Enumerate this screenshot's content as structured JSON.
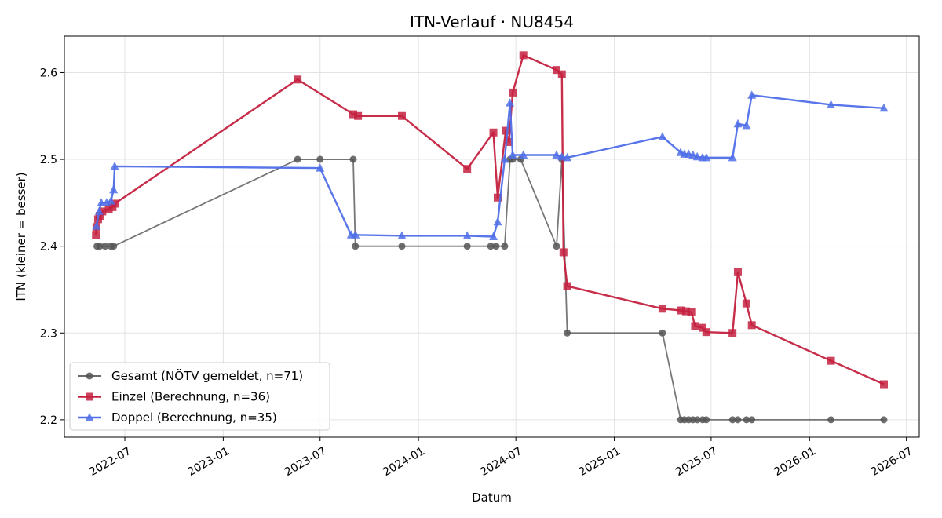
{
  "chart_data": {
    "type": "line",
    "title": "ITN-Verlauf · NU8454",
    "xlabel": "Datum",
    "ylabel": "ITN  (kleiner = besser)",
    "xlim": [
      "2022-03-10",
      "2026-07-25"
    ],
    "ylim": [
      2.18,
      2.642
    ],
    "x_ticks": [
      "2022-07",
      "2023-01",
      "2023-07",
      "2024-01",
      "2024-07",
      "2025-01",
      "2025-07",
      "2026-01",
      "2026-07"
    ],
    "y_ticks": [
      2.2,
      2.3,
      2.4,
      2.5,
      2.6
    ],
    "grid": true,
    "legend_position": "lower-left",
    "series": [
      {
        "name": "Gesamt (NÖTV gemeldet, n=71)",
        "color": "#555555",
        "marker": "circle",
        "points": [
          [
            "2022-05-10",
            2.4
          ],
          [
            "2022-05-15",
            2.4
          ],
          [
            "2022-05-25",
            2.4
          ],
          [
            "2022-06-05",
            2.4
          ],
          [
            "2022-06-10",
            2.4
          ],
          [
            "2023-05-20",
            2.5
          ],
          [
            "2023-07-01",
            2.5
          ],
          [
            "2023-09-01",
            2.5
          ],
          [
            "2023-09-05",
            2.4
          ],
          [
            "2023-12-01",
            2.4
          ],
          [
            "2024-04-01",
            2.4
          ],
          [
            "2024-05-15",
            2.4
          ],
          [
            "2024-05-25",
            2.4
          ],
          [
            "2024-06-10",
            2.4
          ],
          [
            "2024-06-20",
            2.5
          ],
          [
            "2024-06-25",
            2.5
          ],
          [
            "2024-07-10",
            2.5
          ],
          [
            "2024-09-15",
            2.4
          ],
          [
            "2024-09-25",
            2.5
          ],
          [
            "2024-10-05",
            2.3
          ],
          [
            "2025-04-01",
            2.3
          ],
          [
            "2025-05-05",
            2.2
          ],
          [
            "2025-05-12",
            2.2
          ],
          [
            "2025-05-20",
            2.2
          ],
          [
            "2025-05-28",
            2.2
          ],
          [
            "2025-06-05",
            2.2
          ],
          [
            "2025-06-15",
            2.2
          ],
          [
            "2025-06-22",
            2.2
          ],
          [
            "2025-08-10",
            2.2
          ],
          [
            "2025-08-20",
            2.2
          ],
          [
            "2025-09-05",
            2.2
          ],
          [
            "2025-09-15",
            2.2
          ],
          [
            "2026-02-10",
            2.2
          ],
          [
            "2026-05-20",
            2.2
          ]
        ]
      },
      {
        "name": "Einzel (Berechnung, n=36)",
        "color": "#c4213f",
        "marker": "square",
        "points": [
          [
            "2022-05-08",
            2.413
          ],
          [
            "2022-05-09",
            2.422
          ],
          [
            "2022-05-12",
            2.431
          ],
          [
            "2022-05-15",
            2.435
          ],
          [
            "2022-05-20",
            2.44
          ],
          [
            "2022-06-01",
            2.443
          ],
          [
            "2022-06-08",
            2.445
          ],
          [
            "2022-06-12",
            2.449
          ],
          [
            "2023-05-20",
            2.592
          ],
          [
            "2023-09-01",
            2.552
          ],
          [
            "2023-09-10",
            2.55
          ],
          [
            "2023-12-01",
            2.55
          ],
          [
            "2024-04-01",
            2.489
          ],
          [
            "2024-05-20",
            2.531
          ],
          [
            "2024-05-28",
            2.456
          ],
          [
            "2024-06-12",
            2.533
          ],
          [
            "2024-06-18",
            2.52
          ],
          [
            "2024-06-25",
            2.577
          ],
          [
            "2024-07-15",
            2.62
          ],
          [
            "2024-09-15",
            2.603
          ],
          [
            "2024-09-25",
            2.598
          ],
          [
            "2024-09-28",
            2.393
          ],
          [
            "2024-10-05",
            2.354
          ],
          [
            "2025-04-01",
            2.328
          ],
          [
            "2025-05-05",
            2.326
          ],
          [
            "2025-05-15",
            2.325
          ],
          [
            "2025-05-25",
            2.324
          ],
          [
            "2025-06-01",
            2.308
          ],
          [
            "2025-06-15",
            2.306
          ],
          [
            "2025-06-22",
            2.301
          ],
          [
            "2025-08-10",
            2.3
          ],
          [
            "2025-08-20",
            2.37
          ],
          [
            "2025-09-05",
            2.334
          ],
          [
            "2025-09-15",
            2.309
          ],
          [
            "2026-02-10",
            2.268
          ],
          [
            "2026-05-20",
            2.241
          ]
        ]
      },
      {
        "name": "Doppel (Berechnung, n=35)",
        "color": "#4f6fe8",
        "marker": "triangle",
        "points": [
          [
            "2022-05-09",
            2.423
          ],
          [
            "2022-05-14",
            2.44
          ],
          [
            "2022-05-18",
            2.45
          ],
          [
            "2022-05-28",
            2.45
          ],
          [
            "2022-06-05",
            2.452
          ],
          [
            "2022-06-10",
            2.465
          ],
          [
            "2022-06-12",
            2.492
          ],
          [
            "2023-07-01",
            2.49
          ],
          [
            "2023-08-28",
            2.413
          ],
          [
            "2023-09-05",
            2.413
          ],
          [
            "2023-12-01",
            2.412
          ],
          [
            "2024-04-01",
            2.412
          ],
          [
            "2024-05-20",
            2.411
          ],
          [
            "2024-05-28",
            2.428
          ],
          [
            "2024-06-10",
            2.5
          ],
          [
            "2024-06-20",
            2.565
          ],
          [
            "2024-06-25",
            2.505
          ],
          [
            "2024-07-15",
            2.505
          ],
          [
            "2024-09-15",
            2.505
          ],
          [
            "2024-09-25",
            2.503
          ],
          [
            "2024-10-05",
            2.502
          ],
          [
            "2025-04-01",
            2.526
          ],
          [
            "2025-05-05",
            2.508
          ],
          [
            "2025-05-12",
            2.506
          ],
          [
            "2025-05-20",
            2.506
          ],
          [
            "2025-05-28",
            2.505
          ],
          [
            "2025-06-05",
            2.503
          ],
          [
            "2025-06-15",
            2.502
          ],
          [
            "2025-06-22",
            2.502
          ],
          [
            "2025-08-10",
            2.502
          ],
          [
            "2025-08-20",
            2.541
          ],
          [
            "2025-09-05",
            2.539
          ],
          [
            "2025-09-15",
            2.574
          ],
          [
            "2026-02-10",
            2.563
          ],
          [
            "2026-05-20",
            2.559
          ]
        ]
      }
    ]
  }
}
